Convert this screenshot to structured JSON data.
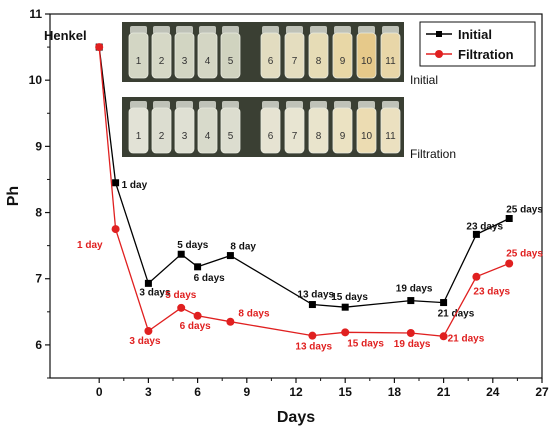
{
  "chart_data": {
    "type": "line",
    "title": "",
    "xlabel": "Days",
    "ylabel": "Ph",
    "xlim": [
      -3,
      27
    ],
    "ylim": [
      5.5,
      11
    ],
    "x_ticks": [
      0,
      3,
      6,
      9,
      12,
      15,
      18,
      21,
      24,
      27
    ],
    "y_ticks": [
      6,
      7,
      8,
      9,
      10,
      11
    ],
    "legend_position": "top-right",
    "start_label": "Henkel",
    "series": [
      {
        "name": "Initial",
        "color": "#000000",
        "marker": "square",
        "x": [
          0,
          1,
          3,
          5,
          6,
          8,
          13,
          15,
          19,
          21,
          23,
          25
        ],
        "y": [
          10.5,
          8.45,
          6.93,
          7.37,
          7.18,
          7.35,
          6.61,
          6.57,
          6.67,
          6.64,
          7.67,
          7.91
        ],
        "point_labels": [
          "",
          "1 day",
          "3 days",
          "5 days",
          "6 days",
          "8 day",
          "13 days",
          "15 days",
          "19 days",
          "21 days",
          "23 days",
          "25 days"
        ]
      },
      {
        "name": "Filtration",
        "color": "#e02020",
        "marker": "circle",
        "x": [
          0,
          1,
          3,
          5,
          6,
          8,
          13,
          15,
          19,
          21,
          23,
          25
        ],
        "y": [
          10.5,
          7.75,
          6.21,
          6.56,
          6.44,
          6.35,
          6.14,
          6.19,
          6.18,
          6.13,
          7.03,
          7.23
        ],
        "point_labels": [
          "",
          "1 day",
          "3 days",
          "5 days",
          "6 days",
          "8 days",
          "13 days",
          "15 days",
          "19 days",
          "21 days",
          "23 days",
          "25 days"
        ]
      }
    ]
  },
  "photos": {
    "top_caption": "Initial",
    "bottom_caption": "Filtration",
    "top_vial_labels": [
      "1",
      "2",
      "3",
      "4",
      "5",
      "6",
      "7",
      "8",
      "9",
      "10",
      "11"
    ],
    "bottom_vial_labels": [
      "1",
      "2",
      "3",
      "4",
      "5",
      "6",
      "7",
      "8",
      "9",
      "10",
      "11"
    ]
  }
}
